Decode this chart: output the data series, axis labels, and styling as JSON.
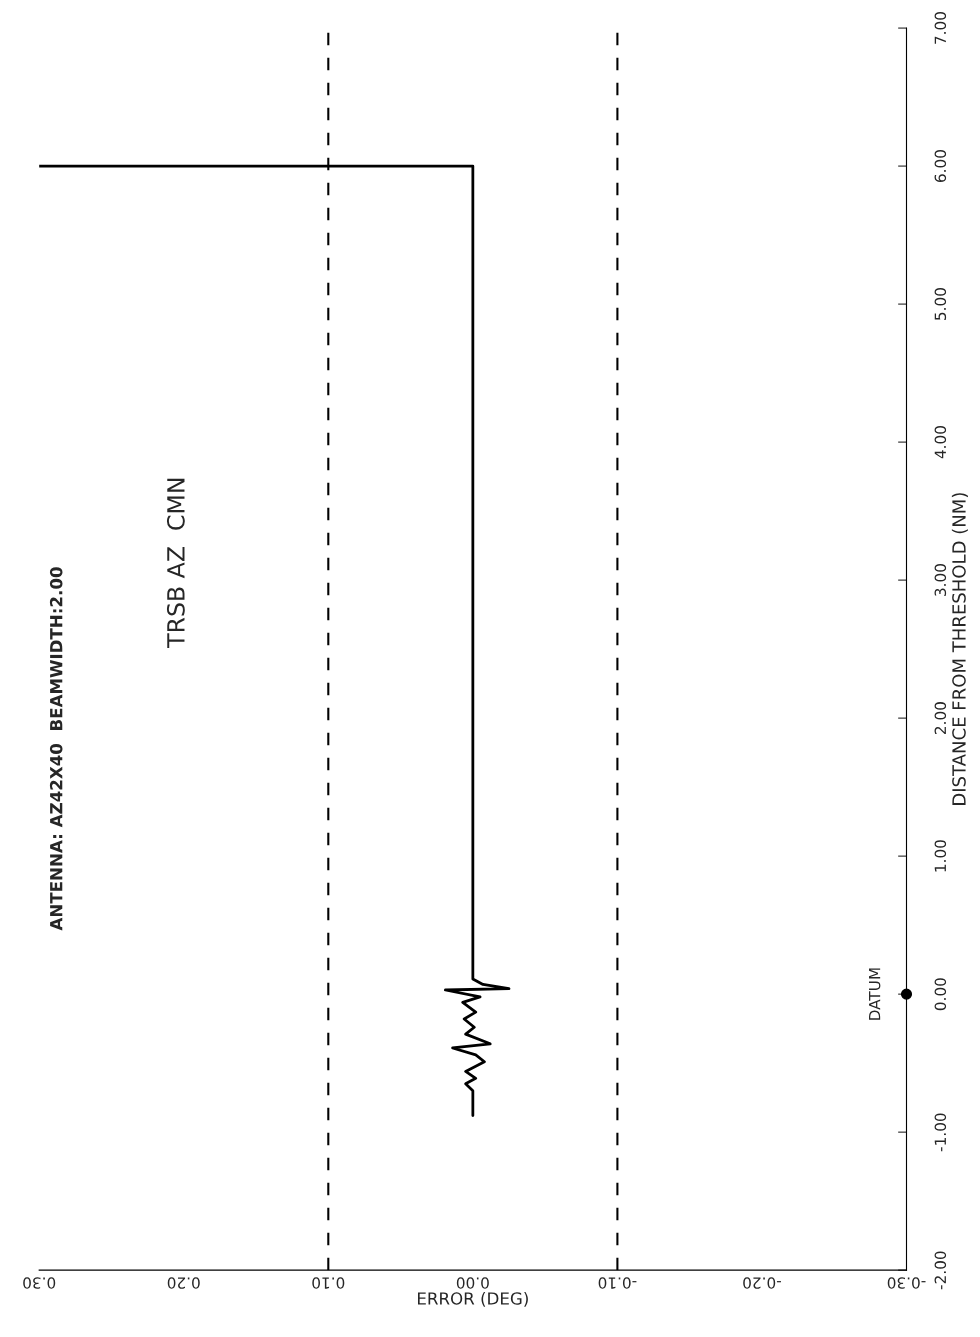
{
  "chart_data": {
    "type": "line",
    "title": "ANTENNA: AZ42X40  BEAMWIDTH:2.00",
    "subtitle": "TRSB AZ  CMN",
    "xlabel": "ERROR (DEG)",
    "ylabel": "DISTANCE FROM THRESHOLD (NM)",
    "xlim": [
      0.3,
      -0.3
    ],
    "xticks": [
      {
        "value": 0.3,
        "label": "0.30"
      },
      {
        "value": 0.2,
        "label": "0.20"
      },
      {
        "value": 0.1,
        "label": "0.10"
      },
      {
        "value": 0,
        "label": "0.00"
      },
      {
        "value": -0.1,
        "label": "-0.10"
      },
      {
        "value": -0.2,
        "label": "-0.20"
      },
      {
        "value": -0.3,
        "label": "-0.30"
      }
    ],
    "ylim": [
      -2.0,
      7.0
    ],
    "yticks": [
      {
        "value": -2,
        "label": "-2.00"
      },
      {
        "value": -1,
        "label": "-1.00"
      },
      {
        "value": 0,
        "label": "0.00"
      },
      {
        "value": 1,
        "label": "1.00"
      },
      {
        "value": 2,
        "label": "2.00"
      },
      {
        "value": 3,
        "label": "3.00"
      },
      {
        "value": 4,
        "label": "4.00"
      },
      {
        "value": 5,
        "label": "5.00"
      },
      {
        "value": 6,
        "label": "6.00"
      },
      {
        "value": 7,
        "label": "7.00"
      }
    ],
    "grid": false,
    "series": [
      {
        "color": "#000000",
        "line_style": "solid",
        "x": [
          0.0,
          0.0,
          0.005,
          -0.002,
          0.005,
          -0.008,
          -0.002,
          0.014,
          -0.012,
          0.005,
          -0.001,
          0.006,
          -0.002,
          0.007,
          -0.005,
          0.019,
          -0.025,
          -0.007,
          0.0,
          0.0,
          0.0,
          0.3
        ],
        "values": [
          -0.88,
          -0.7,
          -0.65,
          -0.61,
          -0.56,
          -0.49,
          -0.44,
          -0.39,
          -0.36,
          -0.29,
          -0.24,
          -0.18,
          -0.13,
          -0.06,
          -0.02,
          0.03,
          0.04,
          0.07,
          0.11,
          0.22,
          6.0,
          6.0
        ]
      }
    ],
    "ref_lines": [
      {
        "axis": "x",
        "value": 0.1,
        "color": "#000000",
        "line_style": "dashed"
      },
      {
        "axis": "x",
        "value": -0.1,
        "color": "#000000",
        "line_style": "dashed"
      }
    ],
    "annotations": [
      {
        "text": "DATUM",
        "x": -0.3,
        "y": 0
      }
    ]
  }
}
